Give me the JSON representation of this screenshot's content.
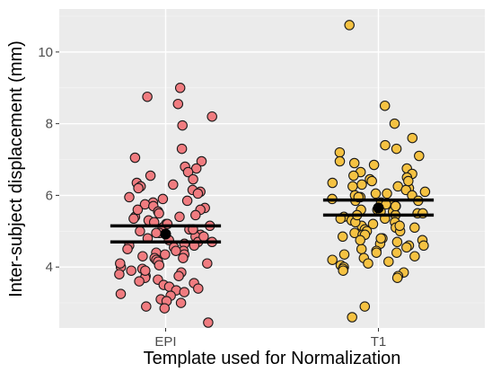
{
  "chart_data": {
    "type": "scatter",
    "title": "",
    "xlabel": "Template used for Normalization",
    "ylabel": "Inter-subject displacement (mm)",
    "categories": [
      "EPI",
      "T1"
    ],
    "ylim": [
      2.3,
      11.2
    ],
    "yticks": [
      4,
      6,
      8,
      10
    ],
    "grid": true,
    "legend": "none",
    "series": [
      {
        "category": "EPI",
        "color": "#f07c80",
        "mean": 4.92,
        "ci_lower": 4.7,
        "ci_upper": 5.15,
        "values": [
          9.0,
          8.75,
          8.55,
          8.2,
          7.95,
          7.3,
          7.05,
          6.95,
          6.8,
          6.75,
          6.65,
          6.55,
          6.45,
          6.35,
          6.3,
          6.25,
          6.2,
          6.15,
          6.1,
          6.05,
          5.95,
          5.9,
          5.85,
          5.8,
          5.75,
          5.7,
          5.65,
          5.6,
          5.55,
          5.5,
          5.45,
          5.4,
          5.35,
          5.3,
          5.25,
          5.2,
          5.15,
          5.1,
          5.05,
          5.0,
          4.95,
          4.9,
          4.85,
          4.8,
          4.75,
          4.7,
          4.65,
          4.6,
          4.55,
          4.5,
          4.45,
          4.4,
          4.35,
          4.3,
          4.25,
          4.2,
          4.15,
          4.1,
          4.05,
          4.0,
          3.95,
          3.9,
          3.85,
          3.8,
          3.75,
          3.7,
          3.65,
          3.6,
          3.55,
          3.5,
          3.45,
          3.4,
          3.35,
          3.3,
          3.25,
          3.2,
          3.1,
          3.05,
          3.0,
          2.9,
          2.85,
          2.45,
          5.6,
          5.2,
          4.85,
          4.45,
          4.1,
          3.75,
          5.4,
          4.95,
          4.6,
          4.25,
          3.9,
          5.05,
          4.7,
          4.35
        ]
      },
      {
        "category": "T1",
        "color": "#f5c242",
        "mean": 5.65,
        "ci_lower": 5.45,
        "ci_upper": 5.87,
        "values": [
          10.75,
          8.5,
          8.0,
          7.6,
          7.4,
          7.3,
          7.2,
          7.1,
          6.95,
          6.9,
          6.85,
          6.75,
          6.65,
          6.6,
          6.55,
          6.5,
          6.45,
          6.4,
          6.35,
          6.3,
          6.25,
          6.2,
          6.15,
          6.1,
          6.05,
          6.0,
          5.95,
          5.9,
          5.85,
          5.8,
          5.75,
          5.7,
          5.65,
          5.6,
          5.55,
          5.5,
          5.45,
          5.4,
          5.35,
          5.3,
          5.25,
          5.2,
          5.15,
          5.1,
          5.05,
          5.0,
          4.95,
          4.9,
          4.85,
          4.8,
          4.75,
          4.7,
          4.65,
          4.6,
          4.55,
          4.5,
          4.45,
          4.4,
          4.35,
          4.3,
          4.25,
          4.2,
          4.15,
          4.1,
          4.05,
          4.0,
          3.95,
          3.9,
          3.85,
          3.75,
          3.7,
          2.9,
          2.6,
          6.05,
          5.85,
          5.6,
          5.35,
          5.1,
          4.9,
          4.6,
          6.25,
          6.0,
          5.75,
          5.5,
          5.25,
          5.0,
          4.75,
          6.4,
          5.95,
          5.55,
          5.15,
          4.8,
          4.4,
          5.7,
          5.45
        ]
      }
    ]
  }
}
